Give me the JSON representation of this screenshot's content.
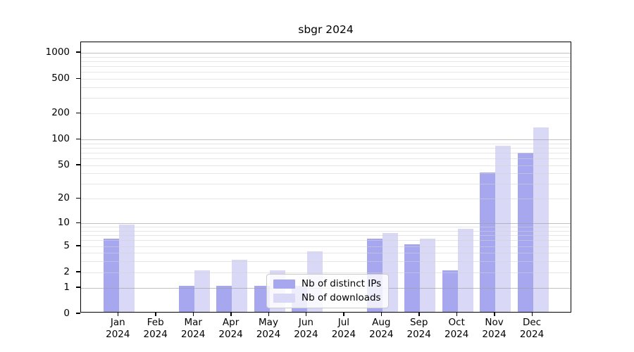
{
  "chart_data": {
    "type": "bar",
    "title": "sbgr 2024",
    "categories": [
      "Jan",
      "Feb",
      "Mar",
      "Apr",
      "May",
      "Jun",
      "Jul",
      "Aug",
      "Sep",
      "Oct",
      "Nov",
      "Dec"
    ],
    "x_year_label": "2024",
    "series": [
      {
        "name": "Nb of distinct IPs",
        "color": "#a7a7f0",
        "values": [
          6,
          0,
          1,
          1,
          1,
          1,
          0,
          6,
          5,
          2,
          39,
          66
        ]
      },
      {
        "name": "Nb of downloads",
        "color": "#d9d9f7",
        "values": [
          9,
          0,
          2,
          3,
          2,
          4,
          0,
          7,
          6,
          8,
          80,
          130
        ]
      }
    ],
    "y_ticks": [
      0,
      1,
      2,
      5,
      10,
      20,
      50,
      100,
      200,
      500,
      1000
    ],
    "y_major_gridlines": [
      1,
      10,
      100,
      1000
    ],
    "y_minor_gridlines": [
      2,
      3,
      4,
      5,
      6,
      7,
      8,
      9,
      20,
      30,
      40,
      50,
      60,
      70,
      80,
      90,
      200,
      300,
      400,
      500,
      600,
      700,
      800,
      900
    ],
    "y_scale": "log10(value+1)",
    "ylim": [
      0,
      1320
    ],
    "grid": true,
    "legend": {
      "position": "bottom-center",
      "entries": [
        "Nb of distinct IPs",
        "Nb of downloads"
      ]
    }
  },
  "styles": {
    "background": "#ffffff",
    "axis_color": "#000000",
    "major_grid_color": "#c4c4c4",
    "minor_grid_color": "#e9e9e9",
    "legend_border_color": "#c9c9c9",
    "text_color": "#000000"
  }
}
